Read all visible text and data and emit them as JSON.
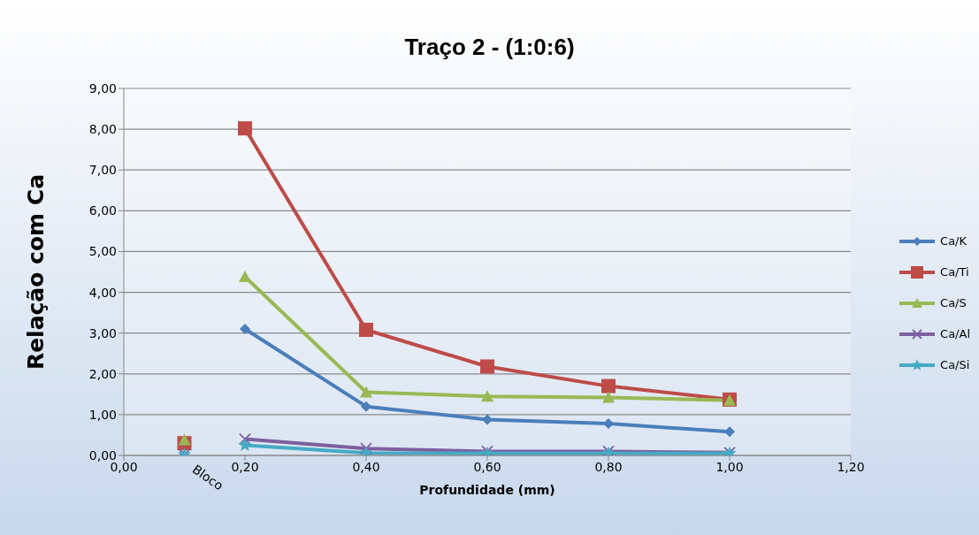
{
  "chart_data": {
    "type": "line",
    "title": "Traço 2 - (1:0:6)",
    "xlabel": "Profundidade (mm)",
    "ylabel": "Relação com Ca",
    "xlim": [
      0,
      1.2
    ],
    "xticks": [
      {
        "value": 0,
        "label": "0,00"
      },
      {
        "value": 0.2,
        "label": "0,20"
      },
      {
        "value": 0.4,
        "label": "0,40"
      },
      {
        "value": 0.6,
        "label": "0,60"
      },
      {
        "value": 0.8,
        "label": "0,80"
      },
      {
        "value": 1,
        "label": "1,00"
      },
      {
        "value": 1.2,
        "label": "1,20"
      }
    ],
    "ylim": [
      0,
      9
    ],
    "yticks": [
      {
        "value": 0,
        "label": "0,00"
      },
      {
        "value": 1,
        "label": "1,00"
      },
      {
        "value": 2,
        "label": "2,00"
      },
      {
        "value": 3,
        "label": "3,00"
      },
      {
        "value": 4,
        "label": "4,00"
      },
      {
        "value": 5,
        "label": "5,00"
      },
      {
        "value": 6,
        "label": "6,00"
      },
      {
        "value": 7,
        "label": "7,00"
      },
      {
        "value": 8,
        "label": "8,00"
      },
      {
        "value": 9,
        "label": "9,00"
      }
    ],
    "grid": "y",
    "legend": "right",
    "annotations": [
      {
        "text": "Bloco",
        "x": 0.1,
        "y": 0
      }
    ],
    "series": [
      {
        "name": "Ca/K",
        "color": "#4a7ebb",
        "marker": "diamond",
        "x": [
          0.2,
          0.4,
          0.6,
          0.8,
          1
        ],
        "values": [
          3.1,
          1.2,
          0.88,
          0.78,
          0.58
        ]
      },
      {
        "name": "Ca/Ti",
        "color": "#be4b48",
        "marker": "square",
        "x": [
          0.2,
          0.4,
          0.6,
          0.8,
          1
        ],
        "values": [
          8.02,
          3.08,
          2.18,
          1.7,
          1.37
        ]
      },
      {
        "name": "Ca/S",
        "color": "#98b954",
        "marker": "triangle",
        "x": [
          0.2,
          0.4,
          0.6,
          0.8,
          1
        ],
        "values": [
          4.38,
          1.55,
          1.45,
          1.42,
          1.35
        ]
      },
      {
        "name": "Ca/Al",
        "color": "#7d60a0",
        "marker": "cross",
        "x": [
          0.2,
          0.4,
          0.6,
          0.8,
          1
        ],
        "values": [
          0.4,
          0.17,
          0.1,
          0.1,
          0.07
        ]
      },
      {
        "name": "Ca/Si",
        "color": "#46aac5",
        "marker": "star",
        "x": [
          0.2,
          0.4,
          0.6,
          0.8,
          1
        ],
        "values": [
          0.25,
          0.06,
          0.05,
          0.05,
          0.05
        ]
      },
      {
        "type": "scatter",
        "color": "#be4b48",
        "marker": "square",
        "x": [
          0.1
        ],
        "values": [
          0.3
        ]
      },
      {
        "type": "scatter",
        "color": "#98b954",
        "marker": "triangle",
        "x": [
          0.1
        ],
        "values": [
          0.38
        ]
      },
      {
        "type": "scatter",
        "color": "#7d60a0",
        "marker": "cross",
        "x": [
          0.1
        ],
        "values": [
          0.02
        ]
      },
      {
        "type": "scatter",
        "color": "#46aac5",
        "marker": "star",
        "x": [
          0.1
        ],
        "values": [
          0.02
        ]
      }
    ]
  }
}
